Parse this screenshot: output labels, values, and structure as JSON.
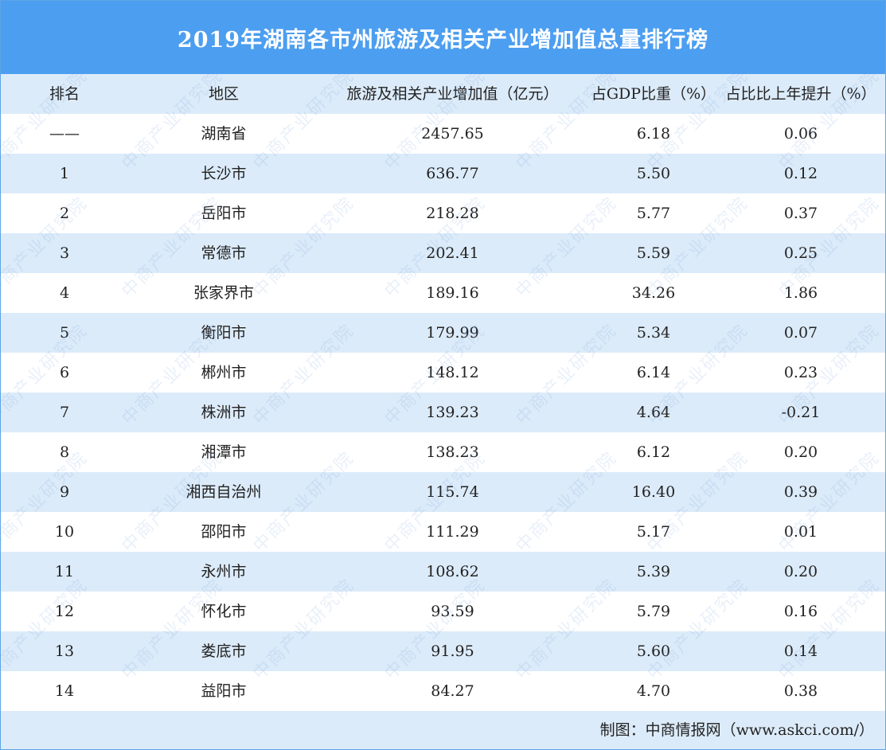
{
  "title": "2019年湖南各市州旅游及相关产业增加值总量排行榜",
  "headers": [
    "排名",
    "地区",
    "旅游及相关产业增加值（亿元）",
    "占GDP比重（%）",
    "占比比上年提升（%）"
  ],
  "rows": [
    [
      "——",
      "湖南省",
      "2457.65",
      "6.18",
      "0.06"
    ],
    [
      "1",
      "长沙市",
      "636.77",
      "5.50",
      "0.12"
    ],
    [
      "2",
      "岳阳市",
      "218.28",
      "5.77",
      "0.37"
    ],
    [
      "3",
      "常德市",
      "202.41",
      "5.59",
      "0.25"
    ],
    [
      "4",
      "张家界市",
      "189.16",
      "34.26",
      "1.86"
    ],
    [
      "5",
      "衡阳市",
      "179.99",
      "5.34",
      "0.07"
    ],
    [
      "6",
      "郴州市",
      "148.12",
      "6.14",
      "0.23"
    ],
    [
      "7",
      "株洲市",
      "139.23",
      "4.64",
      "-0.21"
    ],
    [
      "8",
      "湘潭市",
      "138.23",
      "6.12",
      "0.20"
    ],
    [
      "9",
      "湘西自治州",
      "115.74",
      "16.40",
      "0.39"
    ],
    [
      "10",
      "邵阳市",
      "111.29",
      "5.17",
      "0.01"
    ],
    [
      "11",
      "永州市",
      "108.62",
      "5.39",
      "0.20"
    ],
    [
      "12",
      "怀化市",
      "93.59",
      "5.79",
      "0.16"
    ],
    [
      "13",
      "娄底市",
      "91.95",
      "5.60",
      "0.14"
    ],
    [
      "14",
      "益阳市",
      "84.27",
      "4.70",
      "0.38"
    ]
  ],
  "footer": "制图：中商情报网（www.askci.com/）",
  "watermark": "中商产业研究院",
  "colors": {
    "title_bg": "#4c9ef0",
    "row_shade": "#dcebf9",
    "text": "#222222"
  }
}
